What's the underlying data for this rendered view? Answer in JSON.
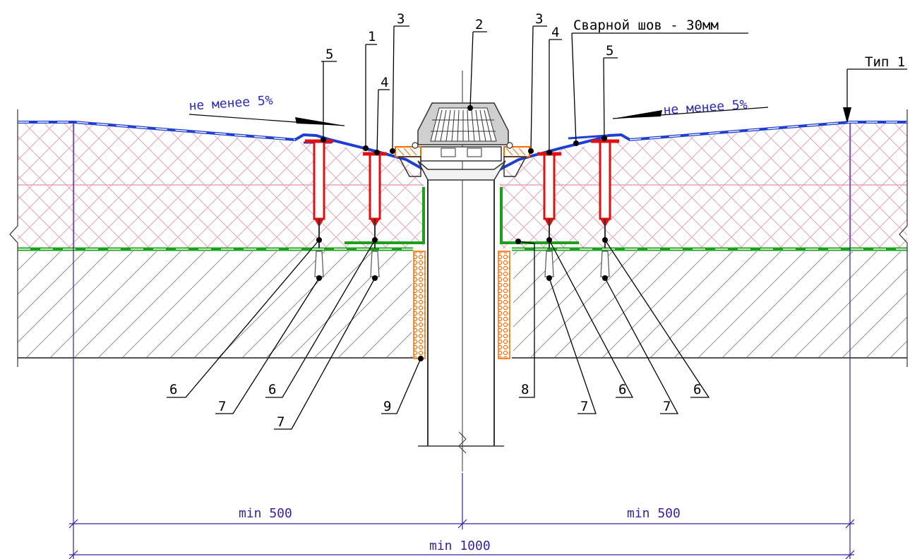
{
  "callouts": {
    "c1": "1",
    "c2": "2",
    "c3_left": "3",
    "c3_right": "3",
    "c4_left": "4",
    "c4_right": "4",
    "c5_left": "5",
    "c5_right": "5",
    "c6_a": "6",
    "c6_b": "6",
    "c6_c": "6",
    "c6_d": "6",
    "c7_a": "7",
    "c7_b": "7",
    "c7_c": "7",
    "c7_d": "7",
    "c8": "8",
    "c9": "9"
  },
  "annotations": {
    "weld": "Сварной шов - 30мм",
    "type": "Тип 1",
    "slope_left": "не менее 5%",
    "slope_right": "не менее 5%"
  },
  "dimensions": {
    "left": "min 500",
    "right": "min 500",
    "total": "min 1000"
  },
  "colors": {
    "membrane": "#1f3fd0",
    "insulation_hatch": "#e2a3b8",
    "vapor_barrier": "#1aa01a",
    "fastener": "#e01010",
    "gasket": "#ff6a00",
    "dimension": "#3a1ea0"
  }
}
